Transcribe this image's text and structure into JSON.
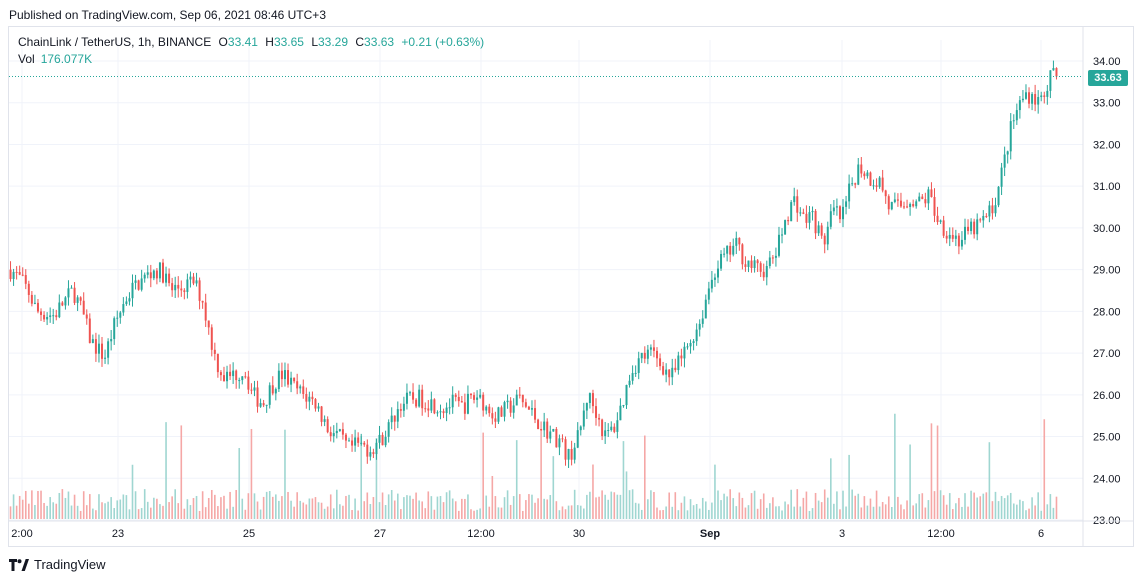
{
  "published": "Published on TradingView.com, Sep 06, 2021 08:46 UTC+3",
  "legend": {
    "symbol": "ChainLink / TetherUS, 1h, BINANCE",
    "o_label": "O",
    "o": "33.41",
    "h_label": "H",
    "h": "33.65",
    "l_label": "L",
    "l": "33.29",
    "c_label": "C",
    "c": "33.63",
    "change": "+0.21 (+0.63%)",
    "vol_label": "Vol",
    "vol": "176.077K"
  },
  "last_price_tag": "33.63",
  "brand": "TradingView",
  "colors": {
    "up": "#26a69a",
    "down": "#ef5350",
    "up_vol": "#9fd6d1",
    "down_vol": "#f5a7a6",
    "grid": "#f0f3fa"
  },
  "chart_data": {
    "type": "candlestick",
    "title": "ChainLink / TetherUS, 1h, BINANCE",
    "ylim": [
      22.9,
      34.3
    ],
    "y_ticks": [
      "34.00",
      "33.00",
      "32.00",
      "31.00",
      "30.00",
      "29.00",
      "28.00",
      "27.00",
      "26.00",
      "25.00",
      "24.00",
      "23.00"
    ],
    "x_ticks": [
      "2:00",
      "23",
      "25",
      "27",
      "12:00",
      "30",
      "Sep",
      "3",
      "12:00",
      "6"
    ],
    "x_tick_bold": [
      false,
      false,
      false,
      false,
      false,
      false,
      true,
      false,
      false,
      false
    ],
    "last_price": 33.63,
    "grid": true,
    "close_path": [
      [
        0,
        29.0
      ],
      [
        0.5,
        28.8
      ],
      [
        1.0,
        28.5
      ],
      [
        1.5,
        28.0
      ],
      [
        2.5,
        27.9
      ],
      [
        3.0,
        28.2
      ],
      [
        3.6,
        28.5
      ],
      [
        4.1,
        28.0
      ],
      [
        4.6,
        27.3
      ],
      [
        5.4,
        26.9
      ],
      [
        5.9,
        27.6
      ],
      [
        6.6,
        28.3
      ],
      [
        7.1,
        28.6
      ],
      [
        7.7,
        28.8
      ],
      [
        8.3,
        29.0
      ],
      [
        8.8,
        28.9
      ],
      [
        9.2,
        28.5
      ],
      [
        10.0,
        28.6
      ],
      [
        10.5,
        28.7
      ],
      [
        11.0,
        28.3
      ],
      [
        11.4,
        27.5
      ],
      [
        11.8,
        26.8
      ],
      [
        12.3,
        26.4
      ],
      [
        12.9,
        26.5
      ],
      [
        13.4,
        26.6
      ],
      [
        13.9,
        26.0
      ],
      [
        14.5,
        25.8
      ],
      [
        15.1,
        26.3
      ],
      [
        15.6,
        26.5
      ],
      [
        16.2,
        26.2
      ],
      [
        16.8,
        26.0
      ],
      [
        17.5,
        25.8
      ],
      [
        18.2,
        25.2
      ],
      [
        18.8,
        25.0
      ],
      [
        19.4,
        24.7
      ],
      [
        20.0,
        24.8
      ],
      [
        20.6,
        24.7
      ],
      [
        21.2,
        24.9
      ],
      [
        21.8,
        25.3
      ],
      [
        22.4,
        25.8
      ],
      [
        23.0,
        25.9
      ],
      [
        23.6,
        25.9
      ],
      [
        24.2,
        25.8
      ],
      [
        24.8,
        25.7
      ],
      [
        25.4,
        25.8
      ],
      [
        25.9,
        25.7
      ],
      [
        26.4,
        25.9
      ],
      [
        26.9,
        26.0
      ],
      [
        27.4,
        25.6
      ],
      [
        28.0,
        25.5
      ],
      [
        28.6,
        25.7
      ],
      [
        29.2,
        25.9
      ],
      [
        29.8,
        25.6
      ],
      [
        30.4,
        25.3
      ],
      [
        30.9,
        25.1
      ],
      [
        31.5,
        24.9
      ],
      [
        32.0,
        24.5
      ],
      [
        32.6,
        25.0
      ],
      [
        33.1,
        26.0
      ],
      [
        33.6,
        25.6
      ],
      [
        34.1,
        25.0
      ],
      [
        34.6,
        25.2
      ],
      [
        35.1,
        25.8
      ],
      [
        35.6,
        26.6
      ],
      [
        36.2,
        26.9
      ],
      [
        36.8,
        27.0
      ],
      [
        37.4,
        26.7
      ],
      [
        37.9,
        26.4
      ],
      [
        38.4,
        26.8
      ],
      [
        39.0,
        27.3
      ],
      [
        39.6,
        27.8
      ],
      [
        40.0,
        28.5
      ],
      [
        40.5,
        29.1
      ],
      [
        41.0,
        29.3
      ],
      [
        41.6,
        29.6
      ],
      [
        42.2,
        29.2
      ],
      [
        42.8,
        29.0
      ],
      [
        43.4,
        29.0
      ],
      [
        44.0,
        29.5
      ],
      [
        44.5,
        30.3
      ],
      [
        45.0,
        30.7
      ],
      [
        45.5,
        30.2
      ],
      [
        46.0,
        30.3
      ],
      [
        46.6,
        29.6
      ],
      [
        47.2,
        30.4
      ],
      [
        47.7,
        30.2
      ],
      [
        48.2,
        31.0
      ],
      [
        48.7,
        31.5
      ],
      [
        49.3,
        31.2
      ],
      [
        49.9,
        31.1
      ],
      [
        50.4,
        30.5
      ],
      [
        51.0,
        30.5
      ],
      [
        51.6,
        30.7
      ],
      [
        52.2,
        30.6
      ],
      [
        52.7,
        30.8
      ],
      [
        53.2,
        30.2
      ],
      [
        53.8,
        29.9
      ],
      [
        54.4,
        29.7
      ],
      [
        55.0,
        29.9
      ],
      [
        55.6,
        30.1
      ],
      [
        56.1,
        30.3
      ],
      [
        56.6,
        30.8
      ],
      [
        57.0,
        31.6
      ],
      [
        57.4,
        32.4
      ],
      [
        57.8,
        32.9
      ],
      [
        58.2,
        33.2
      ],
      [
        58.6,
        33.2
      ],
      [
        59.0,
        33.0
      ],
      [
        59.4,
        33.4
      ],
      [
        59.7,
        33.63
      ]
    ]
  }
}
